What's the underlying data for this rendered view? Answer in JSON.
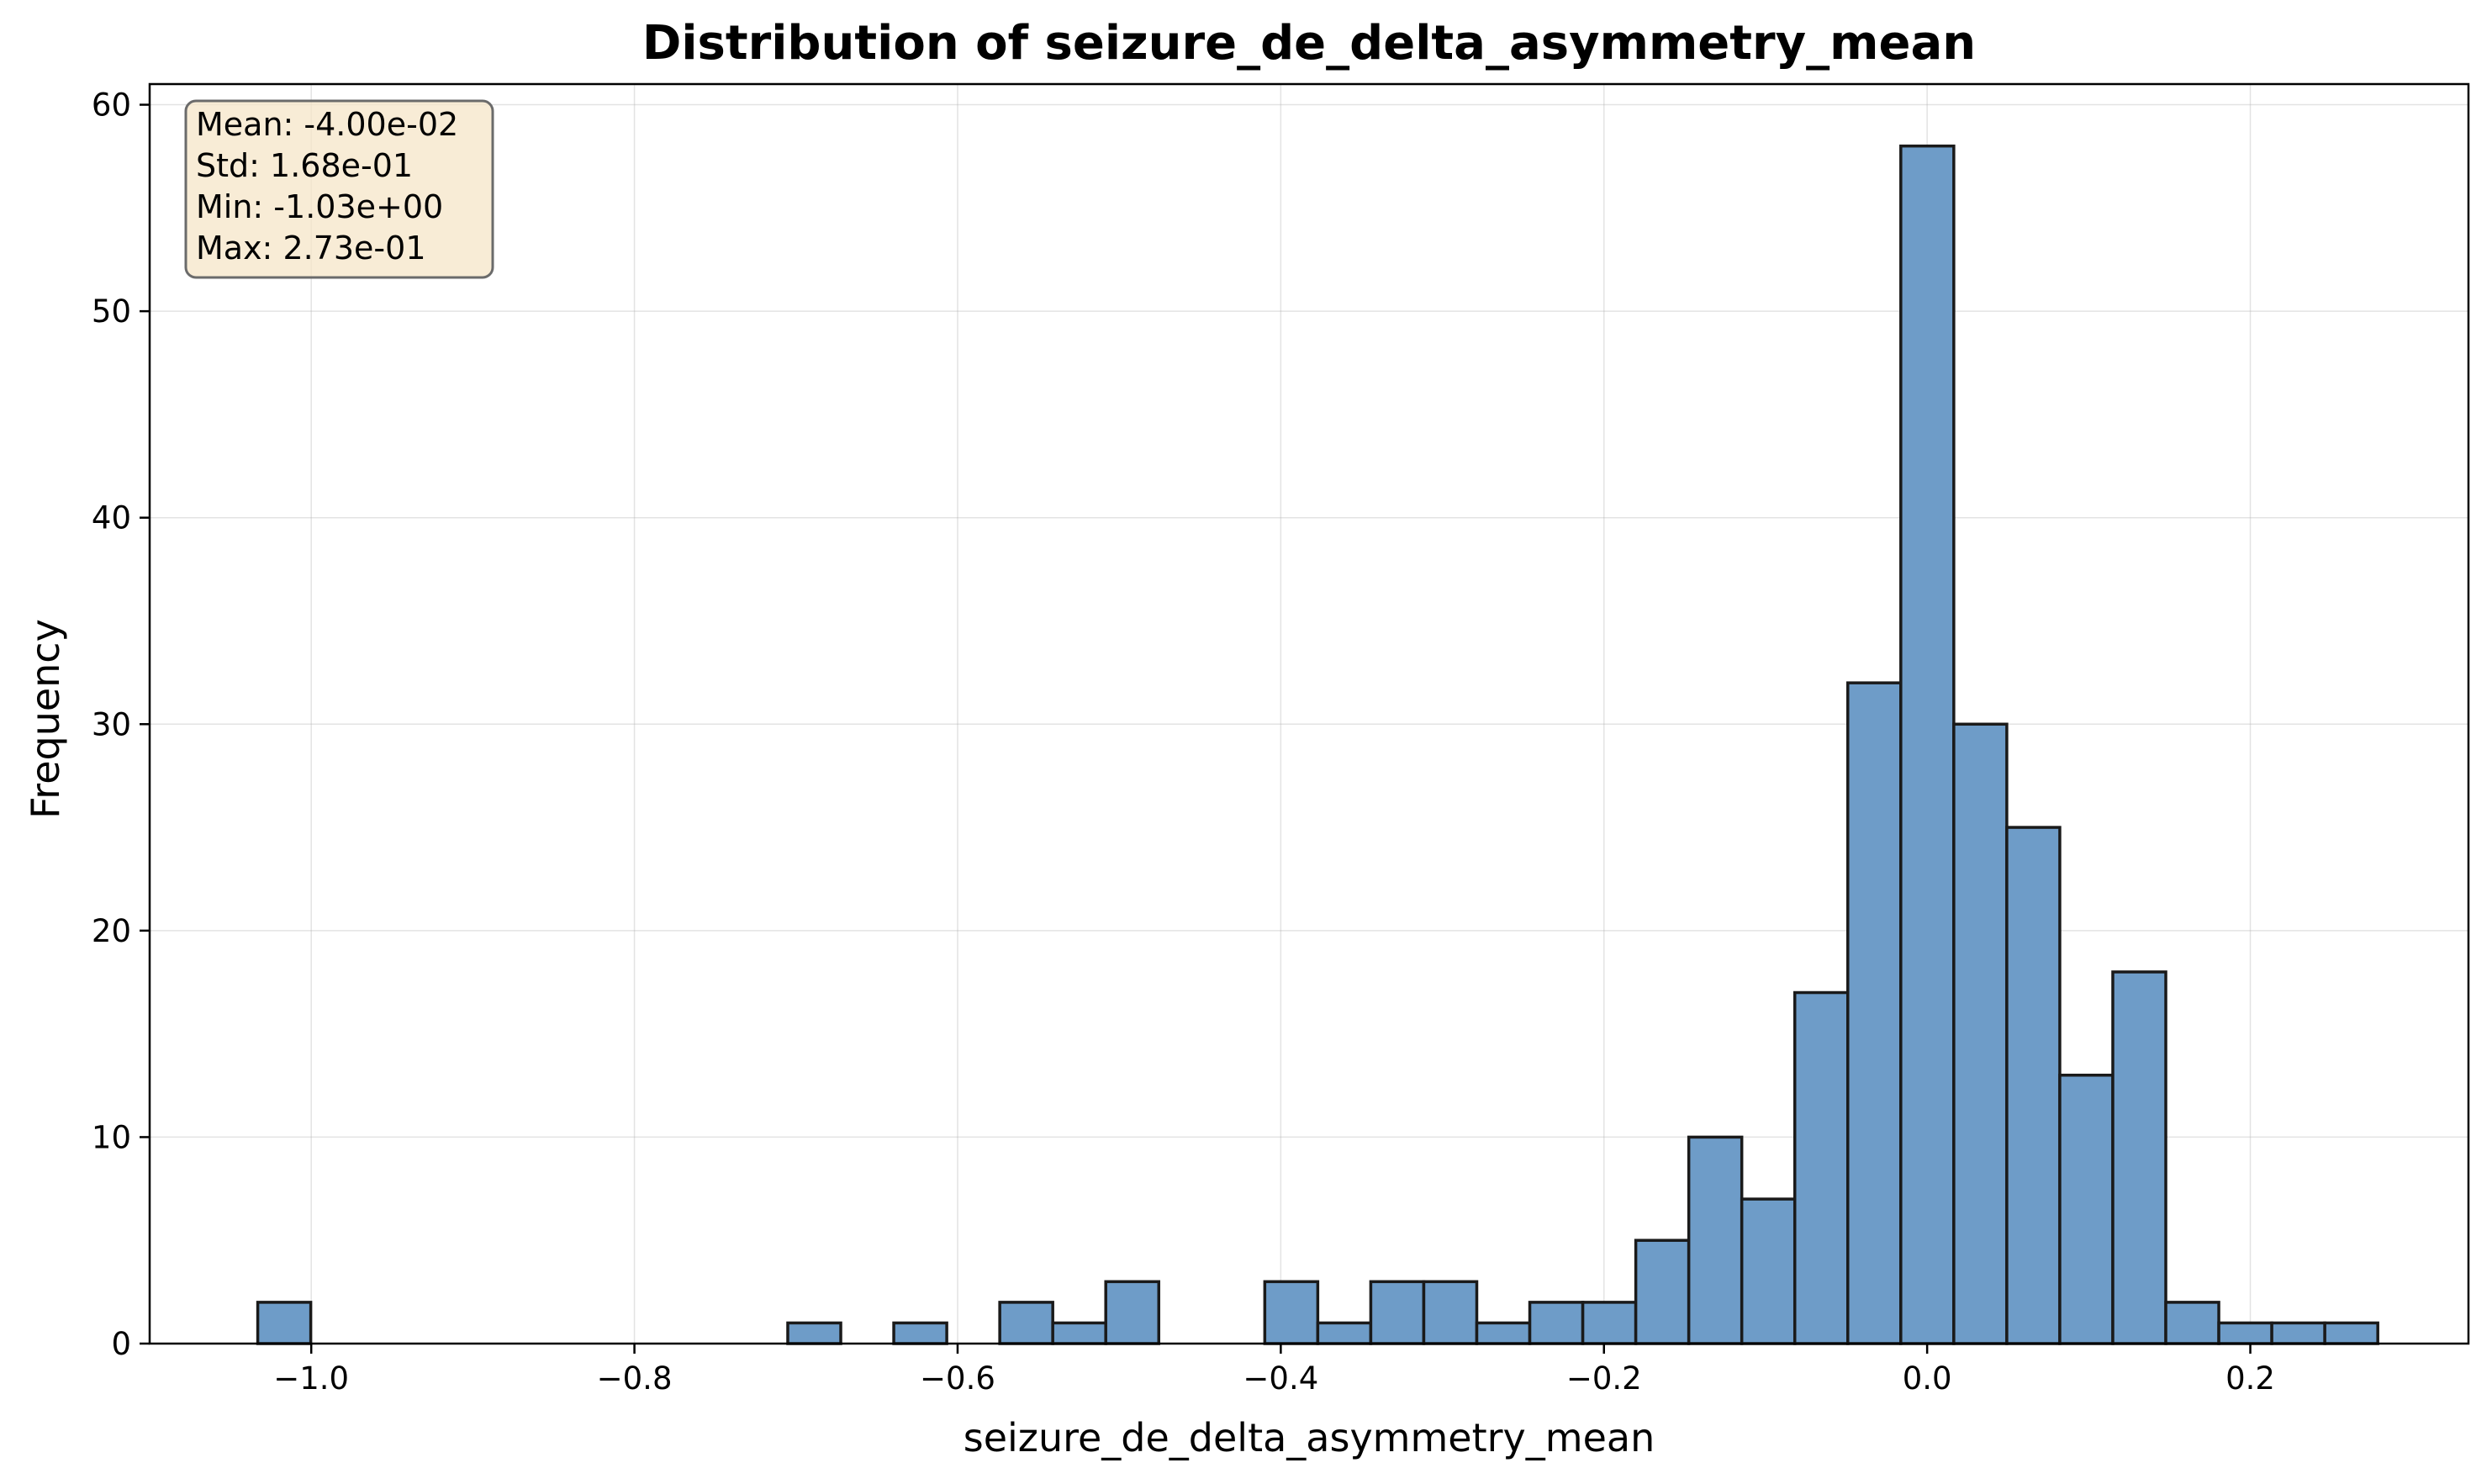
{
  "chart_data": {
    "type": "bar",
    "title": "Distribution of seizure_de_delta_asymmetry_mean",
    "xlabel": "seizure_de_delta_asymmetry_mean",
    "ylabel": "Frequency",
    "xlim": [
      -1.1,
      0.335
    ],
    "ylim": [
      0,
      61
    ],
    "grid": true,
    "bar_color": "#6e9cc8",
    "bar_edge_color": "#1a1a1a",
    "bin_edges": [
      -1.0331,
      -1.0003,
      -0.9675,
      -0.9347,
      -0.9019,
      -0.8691,
      -0.8363,
      -0.8035,
      -0.7707,
      -0.7379,
      -0.7051,
      -0.6723,
      -0.6395,
      -0.6067,
      -0.5739,
      -0.5411,
      -0.5083,
      -0.4755,
      -0.4427,
      -0.4099,
      -0.3771,
      -0.3443,
      -0.3115,
      -0.2787,
      -0.2459,
      -0.2131,
      -0.1803,
      -0.1475,
      -0.1147,
      -0.0819,
      -0.0491,
      -0.0163,
      0.0165,
      0.0493,
      0.0821,
      0.1149,
      0.1477,
      0.1805,
      0.2133,
      0.2461,
      0.2789
    ],
    "counts": [
      2,
      0,
      0,
      0,
      0,
      0,
      0,
      0,
      0,
      0,
      1,
      0,
      1,
      0,
      2,
      1,
      3,
      0,
      0,
      3,
      1,
      3,
      3,
      1,
      2,
      2,
      5,
      10,
      7,
      17,
      32,
      58,
      30,
      25,
      13,
      18,
      2,
      1,
      1,
      1
    ],
    "xticks": [
      -1.0,
      -0.8,
      -0.6,
      -0.4,
      -0.2,
      0.0,
      0.2
    ],
    "xtick_labels": [
      "−1.0",
      "−0.8",
      "−0.6",
      "−0.4",
      "−0.2",
      "0.0",
      "0.2"
    ],
    "yticks": [
      0,
      10,
      20,
      30,
      40,
      50,
      60
    ],
    "ytick_labels": [
      "0",
      "10",
      "20",
      "30",
      "40",
      "50",
      "60"
    ],
    "annotation": {
      "lines": [
        "Mean: -4.00e-02",
        "Std: 1.68e-01",
        "Min: -1.03e+00",
        "Max: 2.73e-01"
      ],
      "placement": "top-left",
      "fill": "#f5e6c8",
      "edge": "#6b6b6b"
    }
  }
}
